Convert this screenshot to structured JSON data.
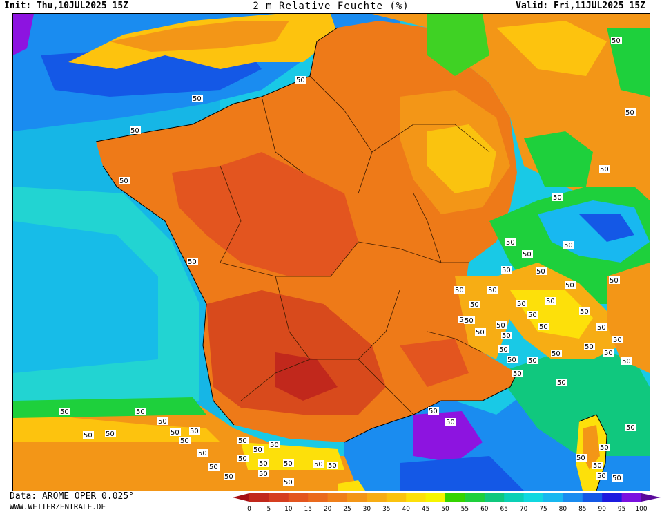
{
  "header": {
    "init": "Init: Thu,10JUL2025 15Z",
    "title": "2 m Relative Feuchte (%)",
    "valid": "Valid: Fri,11JUL2025 15Z"
  },
  "footer": {
    "data": "Data: AROME OPER 0.025°",
    "source": "WWW.WETTERZENTRALE.DE"
  },
  "contour_label": "50",
  "legend": {
    "ticks": [
      "0",
      "5",
      "10",
      "15",
      "20",
      "25",
      "30",
      "35",
      "40",
      "45",
      "50",
      "55",
      "60",
      "65",
      "70",
      "75",
      "80",
      "85",
      "90",
      "95",
      "100"
    ],
    "colors": [
      "#a50f15",
      "#c1281c",
      "#d53e20",
      "#e3551f",
      "#ea6a1d",
      "#ef7f1a",
      "#f39617",
      "#f7ad14",
      "#fac30f",
      "#fde00a",
      "#f6f500",
      "#34d400",
      "#1ed03c",
      "#10c87e",
      "#0ad0b6",
      "#10d8e0",
      "#18b8f0",
      "#1a8cf0",
      "#1458e6",
      "#1c1adf",
      "#7a10e0",
      "#5a0a9a"
    ]
  },
  "colors": {
    "dry": "#d84a1c",
    "orange": "#ee7a18",
    "yellow": "#fdc30e",
    "green": "#3fd224",
    "cyan": "#13cfd8",
    "blue": "#1a8cf0",
    "purple": "#8d14e0"
  }
}
